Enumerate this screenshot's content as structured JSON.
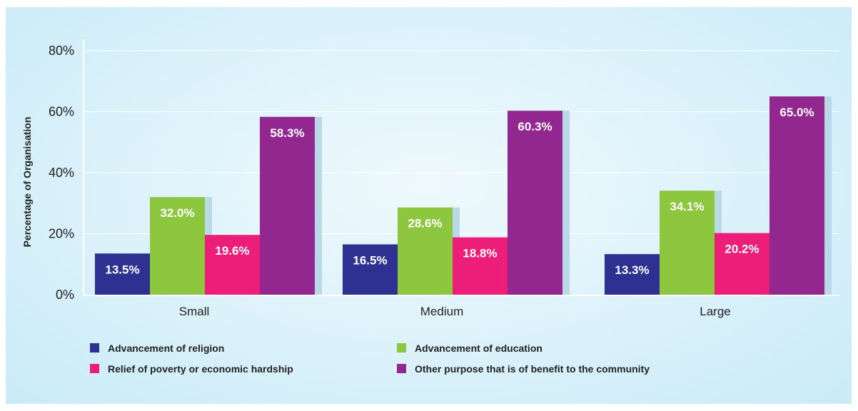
{
  "chart_data": {
    "type": "bar",
    "ylabel": "Percentage of Organisation",
    "ylim": [
      0,
      80
    ],
    "yticks": [
      0,
      20,
      40,
      60,
      80
    ],
    "ytick_labels": [
      "0%",
      "20%",
      "40%",
      "60%",
      "80%"
    ],
    "categories": [
      "Small",
      "Medium",
      "Large"
    ],
    "grid": true,
    "legend_position": "bottom",
    "series": [
      {
        "name": "Advancement of religion",
        "color": "#2e3192",
        "values": [
          13.5,
          16.5,
          13.3
        ],
        "labels": [
          "13.5%",
          "16.5%",
          "13.3%"
        ]
      },
      {
        "name": "Advancement of education",
        "color": "#8dc63f",
        "values": [
          32.0,
          28.6,
          34.1
        ],
        "labels": [
          "32.0%",
          "28.6%",
          "34.1%"
        ]
      },
      {
        "name": "Relief of poverty or economic hardship",
        "color": "#ed1e79",
        "values": [
          19.6,
          18.8,
          20.2
        ],
        "labels": [
          "19.6%",
          "18.8%",
          "20.2%"
        ]
      },
      {
        "name": "Other purpose that is of benefit to the community",
        "color": "#92278f",
        "values": [
          58.3,
          60.3,
          65.0
        ],
        "labels": [
          "58.3%",
          "60.3%",
          "65.0%"
        ]
      }
    ]
  }
}
